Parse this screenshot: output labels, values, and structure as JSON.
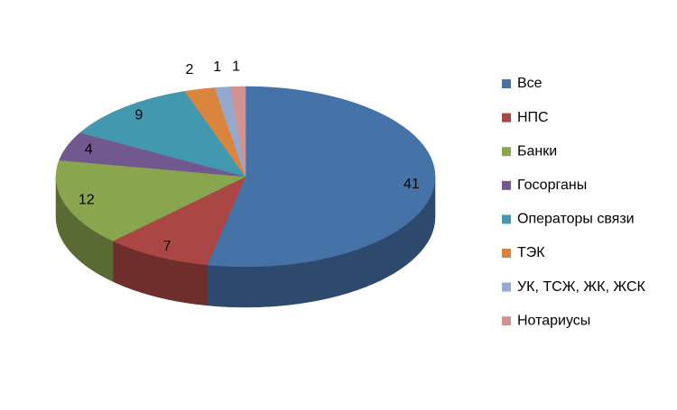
{
  "chart_data": {
    "type": "pie",
    "categories": [
      "Все",
      "НПС",
      "Банки",
      "Госорганы",
      "Операторы связи",
      "ТЭК",
      "УК, ТСЖ, ЖК, ЖСК",
      "Нотариусы"
    ],
    "values": [
      41,
      7,
      12,
      4,
      9,
      2,
      1,
      1
    ],
    "colors": [
      "#4572a7",
      "#aa4643",
      "#89a54e",
      "#71588f",
      "#4198af",
      "#db843d",
      "#93a9cf",
      "#d19392"
    ],
    "legend": "right"
  }
}
